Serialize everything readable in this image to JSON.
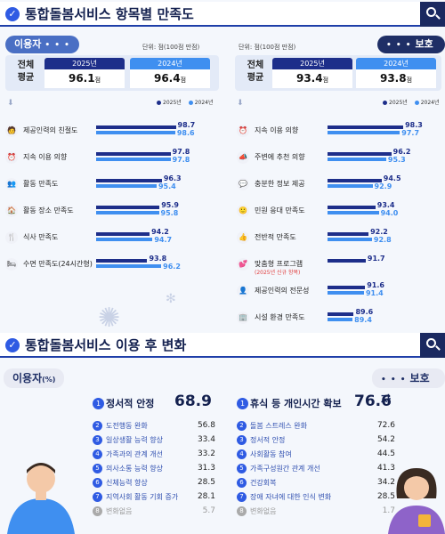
{
  "section1": {
    "title": "통합돌봄서비스 항목별 만족도",
    "user_tab": "이용자",
    "guard_tab": "보호자",
    "unit_user": "단위: 점(100점 만점)",
    "unit_guard": "단위: 점(100점 만점)",
    "avg_label": "전체 평균",
    "year_2025": "2025년",
    "year_2024": "2024년",
    "score_unit": "점",
    "user_avg_2025": "96.1",
    "user_avg_2024": "96.4",
    "guard_avg_2025": "93.4",
    "guard_avg_2024": "93.8",
    "legend_2025": "2025년",
    "legend_2024": "2024년"
  },
  "section2": {
    "title": "통합돌봄서비스 이용 후 변화",
    "user_tab": "이용자",
    "user_tab_unit": "(%)",
    "guard_tab": "보호자",
    "user_list": [
      {
        "n": "1",
        "label": "정서적 안정",
        "value": "68.9"
      },
      {
        "n": "2",
        "label": "도전행동 완화",
        "value": "56.8"
      },
      {
        "n": "3",
        "label": "일상생활 능력 향상",
        "value": "33.4"
      },
      {
        "n": "4",
        "label": "가족과의 관계 개선",
        "value": "33.2"
      },
      {
        "n": "5",
        "label": "의사소통 능력 향상",
        "value": "31.3"
      },
      {
        "n": "6",
        "label": "신체능력 향상",
        "value": "28.5"
      },
      {
        "n": "7",
        "label": "지역사회 활동 기회 증가",
        "value": "28.1"
      },
      {
        "n": "8",
        "label": "변화없음",
        "value": "5.7"
      }
    ],
    "guard_list": [
      {
        "n": "1",
        "label": "휴식 등 개인시간 확보",
        "value": "76.6"
      },
      {
        "n": "2",
        "label": "돌봄 스트레스 완화",
        "value": "72.6"
      },
      {
        "n": "3",
        "label": "정서적 안정",
        "value": "54.2"
      },
      {
        "n": "4",
        "label": "사회활동 참여",
        "value": "44.5"
      },
      {
        "n": "5",
        "label": "가족구성원간 관계 개선",
        "value": "41.3"
      },
      {
        "n": "6",
        "label": "건강회복",
        "value": "34.2"
      },
      {
        "n": "7",
        "label": "장애 자녀에 대한 인식 변화",
        "value": "28.5"
      },
      {
        "n": "8",
        "label": "변화없음",
        "value": "1.7"
      }
    ]
  },
  "colors": {
    "y2025": "#1d2e8a",
    "y2024": "#3f8ff0",
    "accent": "#2f5be3"
  },
  "chart_data": [
    {
      "type": "bar",
      "orientation": "horizontal",
      "title": "이용자",
      "categories": [
        "제공인력의 친절도",
        "지속 이용 의향",
        "활동 만족도",
        "활동 장소 만족도",
        "식사 만족도",
        "수면 만족도(24시간형)"
      ],
      "icons": [
        "🧑",
        "⏰",
        "👥",
        "🏠",
        "🍴",
        "🛏"
      ],
      "series": [
        {
          "name": "2025년",
          "values": [
            98.7,
            97.8,
            96.3,
            95.9,
            94.2,
            93.8
          ]
        },
        {
          "name": "2024년",
          "values": [
            98.6,
            97.8,
            95.4,
            95.8,
            94.7,
            96.2
          ]
        }
      ],
      "xlim": [
        85,
        100
      ]
    },
    {
      "type": "bar",
      "orientation": "horizontal",
      "title": "보호자",
      "categories": [
        "지속 이용 의향",
        "주변에 추천 의향",
        "충분한 정보 제공",
        "민원 응대 만족도",
        "전반적 만족도",
        "맞춤형 프로그램",
        "제공인력의 전문성",
        "시설 환경 만족도"
      ],
      "subtitles": [
        "",
        "",
        "",
        "",
        "",
        "(2025년 신규 항목)",
        "",
        ""
      ],
      "icons": [
        "⏰",
        "📣",
        "💬",
        "🙂",
        "👍",
        "💕",
        "👤",
        "🏢"
      ],
      "series": [
        {
          "name": "2025년",
          "values": [
            98.3,
            96.2,
            94.5,
            93.4,
            92.2,
            91.7,
            91.6,
            89.6
          ]
        },
        {
          "name": "2024년",
          "values": [
            97.7,
            95.3,
            92.9,
            94.0,
            92.8,
            null,
            91.4,
            89.4
          ]
        }
      ],
      "xlim": [
        85,
        100
      ]
    }
  ]
}
